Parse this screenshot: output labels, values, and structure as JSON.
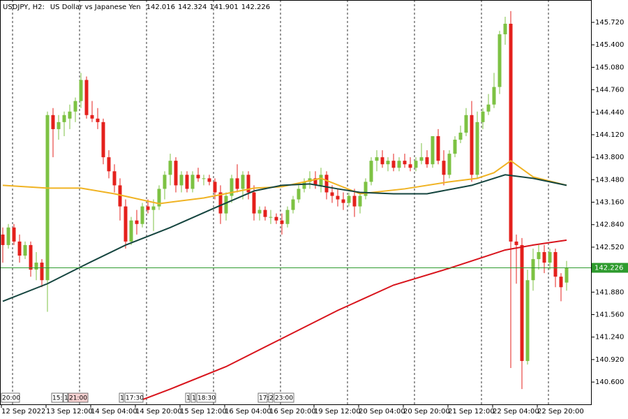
{
  "chart_data": {
    "type": "candlestick",
    "symbol": "USDJPY, H2:",
    "description": "US Dollar vs Japanese Yen",
    "categories": [
      "12 Sep 2022",
      null,
      null,
      null,
      null,
      null,
      null,
      null,
      "13 Sep 12:00",
      null,
      null,
      null,
      null,
      null,
      null,
      null,
      "14 Sep 04:00",
      null,
      null,
      null,
      null,
      null,
      null,
      null,
      "14 Sep 20:00",
      null,
      null,
      null,
      null,
      null,
      null,
      null,
      "15 Sep 12:00",
      null,
      null,
      null,
      null,
      null,
      null,
      null,
      "16 Sep 04:00",
      null,
      null,
      null,
      null,
      null,
      null,
      null,
      "16 Sep 20:00",
      null,
      null,
      null,
      null,
      null,
      null,
      null,
      "19 Sep 12:00",
      null,
      null,
      null,
      null,
      null,
      null,
      null,
      "20 Sep 04:00",
      null,
      null,
      null,
      null,
      null,
      null,
      null,
      "20 Sep 20:00",
      null,
      null,
      null,
      null,
      null,
      null,
      null,
      "21 Sep 12:00",
      null,
      null,
      null,
      null,
      null,
      null,
      null,
      "22 Sep 04:00",
      null,
      null,
      null,
      null,
      null,
      null,
      null,
      "22 Sep 20:00",
      null,
      null,
      null,
      null,
      null
    ],
    "open": [
      142.7,
      142.55,
      142.8,
      142.6,
      142.4,
      142.55,
      142.2,
      142.3,
      142.05,
      144.4,
      144.2,
      144.3,
      144.35,
      144.45,
      144.6,
      144.9,
      144.4,
      144.35,
      144.3,
      143.8,
      143.6,
      143.4,
      143.1,
      142.6,
      142.9,
      142.85,
      143.1,
      143.05,
      143.1,
      143.35,
      143.55,
      143.75,
      143.4,
      143.55,
      143.35,
      143.55,
      143.5,
      143.5,
      143.45,
      143.3,
      143.0,
      143.25,
      143.5,
      143.35,
      143.55,
      143.3,
      143.0,
      143.05,
      142.95,
      142.95,
      142.9,
      142.85,
      143.05,
      143.2,
      143.35,
      143.45,
      143.5,
      143.4,
      143.55,
      143.3,
      143.25,
      143.2,
      143.15,
      143.25,
      143.1,
      143.25,
      143.45,
      143.75,
      143.8,
      143.7,
      143.75,
      143.65,
      143.75,
      143.7,
      143.65,
      143.75,
      143.8,
      143.7,
      144.1,
      143.75,
      143.55,
      143.85,
      144.05,
      144.15,
      144.4,
      143.55,
      144.3,
      144.45,
      144.55,
      144.8,
      145.55,
      145.7,
      142.6,
      142.55,
      140.9,
      142.05,
      142.35,
      142.45,
      142.3,
      142.45,
      142.1,
      142.016
    ],
    "high": [
      142.8,
      142.85,
      142.85,
      142.7,
      142.6,
      142.6,
      142.45,
      142.35,
      144.45,
      144.5,
      144.4,
      144.45,
      144.55,
      144.65,
      145.0,
      144.95,
      144.6,
      144.5,
      144.35,
      143.9,
      143.7,
      143.5,
      143.2,
      142.95,
      143.05,
      143.15,
      143.2,
      143.2,
      143.4,
      143.6,
      143.85,
      143.8,
      143.6,
      143.6,
      143.6,
      143.65,
      143.55,
      143.55,
      143.5,
      143.4,
      143.3,
      143.55,
      143.7,
      143.6,
      143.6,
      143.4,
      143.1,
      143.1,
      143.05,
      143.0,
      143.0,
      143.1,
      143.25,
      143.4,
      143.5,
      143.6,
      143.6,
      143.65,
      143.6,
      143.4,
      143.35,
      143.3,
      143.3,
      143.35,
      143.3,
      143.5,
      143.8,
      143.9,
      143.9,
      143.8,
      143.85,
      143.8,
      143.85,
      143.8,
      143.8,
      144.0,
      143.9,
      144.1,
      144.2,
      143.9,
      143.9,
      144.1,
      144.25,
      144.5,
      144.6,
      144.45,
      144.5,
      144.7,
      145.0,
      145.6,
      145.8,
      145.88,
      142.7,
      142.65,
      142.2,
      142.5,
      142.55,
      142.55,
      142.5,
      142.5,
      142.15,
      142.324
    ],
    "low": [
      142.3,
      142.5,
      142.55,
      142.3,
      142.35,
      142.1,
      142.05,
      141.95,
      141.6,
      143.8,
      144.05,
      144.1,
      144.2,
      144.3,
      144.5,
      144.35,
      144.3,
      144.2,
      143.7,
      143.5,
      143.3,
      142.9,
      142.5,
      142.55,
      142.7,
      142.8,
      143.0,
      142.75,
      143.05,
      143.2,
      143.4,
      143.3,
      143.3,
      143.3,
      143.3,
      143.45,
      143.4,
      143.4,
      143.2,
      142.85,
      142.9,
      143.15,
      143.3,
      143.2,
      143.2,
      142.9,
      142.9,
      142.9,
      142.85,
      142.85,
      142.7,
      142.8,
      143.0,
      143.15,
      143.3,
      143.35,
      143.35,
      143.3,
      143.2,
      143.15,
      143.1,
      143.05,
      143.1,
      142.95,
      143.0,
      143.2,
      143.4,
      143.6,
      143.65,
      143.6,
      143.6,
      143.6,
      143.65,
      143.6,
      143.6,
      143.7,
      143.65,
      143.65,
      143.7,
      143.4,
      143.5,
      143.8,
      144.0,
      144.1,
      143.45,
      143.5,
      144.2,
      144.4,
      144.5,
      144.7,
      145.4,
      140.8,
      142.0,
      140.5,
      140.85,
      141.9,
      142.2,
      142.15,
      142.2,
      141.95,
      141.75,
      141.901
    ],
    "close": [
      142.55,
      142.8,
      142.6,
      142.4,
      142.55,
      142.2,
      142.3,
      142.05,
      144.4,
      144.2,
      144.3,
      144.4,
      144.45,
      144.6,
      144.9,
      144.4,
      144.35,
      144.3,
      143.8,
      143.6,
      143.4,
      143.1,
      142.6,
      142.9,
      142.85,
      143.1,
      143.05,
      143.1,
      143.35,
      143.55,
      143.75,
      143.4,
      143.55,
      143.35,
      143.55,
      143.5,
      143.5,
      143.45,
      143.3,
      143.0,
      143.25,
      143.5,
      143.35,
      143.55,
      143.3,
      143.0,
      143.05,
      142.95,
      142.95,
      142.9,
      142.85,
      143.05,
      143.2,
      143.35,
      143.45,
      143.5,
      143.4,
      143.55,
      143.3,
      143.25,
      143.2,
      143.15,
      143.25,
      143.1,
      143.25,
      143.45,
      143.75,
      143.8,
      143.7,
      143.75,
      143.65,
      143.75,
      143.7,
      143.65,
      143.75,
      143.8,
      143.7,
      144.1,
      143.75,
      143.55,
      143.85,
      144.05,
      144.15,
      144.4,
      143.55,
      144.3,
      144.45,
      144.55,
      144.8,
      145.55,
      145.7,
      142.6,
      142.55,
      140.9,
      142.05,
      142.35,
      142.45,
      142.3,
      142.45,
      142.1,
      141.95,
      142.226
    ],
    "up_color": "#7dc243",
    "down_color": "#e4201c",
    "lines": [
      {
        "color": "#f0b323",
        "x": [
          0,
          8,
          14,
          20,
          28,
          36,
          45,
          50,
          57,
          64,
          72,
          80,
          85,
          88,
          91,
          95,
          101
        ],
        "values": [
          143.4,
          143.36,
          143.36,
          143.28,
          143.14,
          143.22,
          143.36,
          143.38,
          143.5,
          143.28,
          143.35,
          143.45,
          143.5,
          143.58,
          143.75,
          143.52,
          143.4
        ]
      },
      {
        "color": "#15453f",
        "x": [
          0,
          8,
          15,
          22,
          30,
          38,
          45,
          50,
          55,
          60,
          64,
          70,
          76,
          84,
          90,
          95,
          101
        ],
        "values": [
          141.75,
          142.0,
          142.28,
          142.55,
          142.8,
          143.08,
          143.32,
          143.4,
          143.42,
          143.35,
          143.3,
          143.28,
          143.28,
          143.4,
          143.55,
          143.5,
          143.4
        ]
      },
      {
        "color": "#d8141c",
        "x": [
          25,
          30,
          40,
          50,
          60,
          70,
          80,
          85,
          90,
          95,
          101
        ],
        "values": [
          140.35,
          140.5,
          140.82,
          141.22,
          141.62,
          141.98,
          142.22,
          142.35,
          142.48,
          142.55,
          142.62
        ]
      }
    ],
    "price_line_color": "#2e9b2e",
    "events": [
      "20:00",
      "15:",
      "1",
      "21:00",
      "1",
      "17:30",
      "1",
      "1",
      "18:30",
      "17:",
      "2",
      "23:00"
    ],
    "ylim": [
      140.273,
      146.038
    ],
    "yticks": [
      {
        "value": 145.72,
        "label": "145.720"
      },
      {
        "value": 145.4,
        "label": "145.400"
      },
      {
        "value": 145.08,
        "label": "145.080"
      },
      {
        "value": 144.76,
        "label": "144.760"
      },
      {
        "value": 144.44,
        "label": "144.440"
      },
      {
        "value": 144.12,
        "label": "144.120"
      },
      {
        "value": 143.8,
        "label": "143.800"
      },
      {
        "value": 143.48,
        "label": "143.480"
      },
      {
        "value": 143.16,
        "label": "143.160"
      },
      {
        "value": 142.84,
        "label": "142.840"
      },
      {
        "value": 142.52,
        "label": "142.520"
      },
      {
        "value": 142.2,
        "label": "142.200"
      },
      {
        "value": 141.88,
        "label": "141.880"
      },
      {
        "value": 141.56,
        "label": "141.560"
      },
      {
        "value": 141.24,
        "label": "141.240"
      },
      {
        "value": 140.92,
        "label": "140.920"
      },
      {
        "value": 140.6,
        "label": "140.600"
      }
    ],
    "grid": false
  }
}
